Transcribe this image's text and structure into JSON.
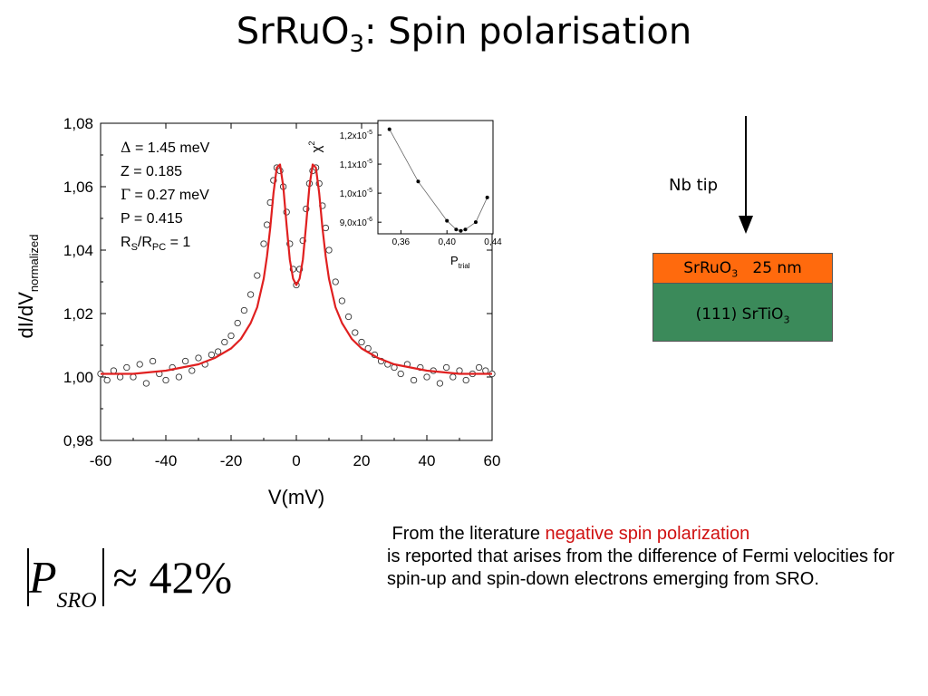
{
  "slide": {
    "title_main": "SrRuO",
    "title_sub": "3",
    "title_rest": ": Spin polarisation"
  },
  "chart_data": [
    {
      "type": "scatter",
      "xlabel": "V(mV)",
      "ylabel_main": "dI/dV",
      "ylabel_sub": "normalized",
      "xlim": [
        -60,
        60
      ],
      "ylim": [
        0.98,
        1.08
      ],
      "xticks": [
        -60,
        -40,
        -20,
        0,
        20,
        40,
        60
      ],
      "xtick_labels": [
        "-60",
        "-40",
        "-20",
        "0",
        "20",
        "40",
        "60"
      ],
      "yticks": [
        0.98,
        1.0,
        1.02,
        1.04,
        1.06,
        1.08
      ],
      "ytick_labels": [
        "0,98",
        "1,00",
        "1,02",
        "1,04",
        "1,06",
        "1,08"
      ],
      "annotations": [
        {
          "sym": "Δ",
          "text": " = 1.45 meV"
        },
        {
          "sym": "",
          "text": "Z = 0.185"
        },
        {
          "sym": "Γ",
          "text": " = 0.27 meV"
        },
        {
          "sym": "",
          "text": "P = 0.415"
        },
        {
          "sym": "",
          "text": "R",
          "sub1": "S",
          "mid": "/R",
          "sub2": "PC",
          "end": " = 1"
        }
      ],
      "fit_color": "#e02020",
      "measured": {
        "x": [
          -60,
          -58,
          -56,
          -54,
          -52,
          -50,
          -48,
          -46,
          -44,
          -42,
          -40,
          -38,
          -36,
          -34,
          -32,
          -30,
          -28,
          -26,
          -24,
          -22,
          -20,
          -18,
          -16,
          -14,
          -12,
          -10,
          -9,
          -8,
          -7,
          -6,
          -5,
          -4,
          -3,
          -2,
          -1,
          0,
          1,
          2,
          3,
          4,
          5,
          6,
          7,
          8,
          9,
          10,
          12,
          14,
          16,
          18,
          20,
          22,
          24,
          26,
          28,
          30,
          32,
          34,
          36,
          38,
          40,
          42,
          44,
          46,
          48,
          50,
          52,
          54,
          56,
          58,
          60
        ],
        "y": [
          1.001,
          0.999,
          1.002,
          1.0,
          1.003,
          1.0,
          1.004,
          0.998,
          1.005,
          1.001,
          0.999,
          1.003,
          1.0,
          1.005,
          1.002,
          1.006,
          1.004,
          1.007,
          1.008,
          1.011,
          1.013,
          1.017,
          1.021,
          1.026,
          1.032,
          1.042,
          1.048,
          1.055,
          1.062,
          1.066,
          1.065,
          1.06,
          1.052,
          1.042,
          1.034,
          1.029,
          1.034,
          1.043,
          1.053,
          1.061,
          1.065,
          1.066,
          1.061,
          1.054,
          1.047,
          1.04,
          1.03,
          1.024,
          1.019,
          1.014,
          1.011,
          1.009,
          1.007,
          1.005,
          1.004,
          1.003,
          1.001,
          1.004,
          0.999,
          1.003,
          1.0,
          1.002,
          0.998,
          1.003,
          1.0,
          1.002,
          0.999,
          1.001,
          1.003,
          1.002,
          1.001
        ]
      },
      "fit": {
        "x": [
          -60,
          -50,
          -40,
          -30,
          -25,
          -20,
          -17,
          -14,
          -12,
          -10,
          -9,
          -8,
          -7,
          -6,
          -5,
          -4,
          -3,
          -2,
          -1,
          0,
          1,
          2,
          3,
          4,
          5,
          6,
          7,
          8,
          9,
          10,
          12,
          14,
          17,
          20,
          25,
          30,
          40,
          50,
          60
        ],
        "y": [
          1.001,
          1.001,
          1.002,
          1.004,
          1.006,
          1.009,
          1.012,
          1.017,
          1.022,
          1.031,
          1.038,
          1.047,
          1.058,
          1.066,
          1.067,
          1.06,
          1.048,
          1.037,
          1.031,
          1.029,
          1.031,
          1.037,
          1.048,
          1.06,
          1.067,
          1.066,
          1.058,
          1.047,
          1.038,
          1.031,
          1.022,
          1.017,
          1.012,
          1.009,
          1.006,
          1.004,
          1.002,
          1.001,
          1.001
        ]
      }
    },
    {
      "type": "line",
      "xlabel_main": "P",
      "xlabel_sub": "trial",
      "ylabel": "χ",
      "ylabel_sup": "2",
      "xlim": [
        0.34,
        0.44
      ],
      "ylim": [
        8.6e-06,
        1.25e-05
      ],
      "xticks": [
        0.36,
        0.4,
        0.44
      ],
      "xtick_labels": [
        "0,36",
        "0,40",
        "0,44"
      ],
      "yticks": [
        9e-06,
        1e-05,
        1.1e-05,
        1.2e-05
      ],
      "ytick_labels": [
        {
          "base": "9,0x10",
          "exp": "-6"
        },
        {
          "base": "1,0x10",
          "exp": "-5"
        },
        {
          "base": "1,1x10",
          "exp": "-5"
        },
        {
          "base": "1,2x10",
          "exp": "-5"
        }
      ],
      "x": [
        0.35,
        0.375,
        0.4,
        0.408,
        0.412,
        0.416,
        0.425,
        0.435
      ],
      "y": [
        1.22e-05,
        1.04e-05,
        9.05e-06,
        8.75e-06,
        8.7e-06,
        8.75e-06,
        9e-06,
        9.85e-06
      ]
    }
  ],
  "schematic": {
    "tip_label": "Nb tip",
    "top_layer": {
      "main": "SrRuO",
      "sub": "3",
      "rest": "   25 nm",
      "color": "#ff6a0d"
    },
    "bottom_layer": {
      "main": "(111) SrTiO",
      "sub": "3",
      "color": "#3b8a5a"
    }
  },
  "note": {
    "plain1": " From the literature ",
    "highlight": "negative spin polarization",
    "plain2": "is reported that arises from the difference of Fermi velocities for spin-up and spin-down electrons emerging from SRO.",
    "highlight_color": "#d01010"
  },
  "formula": {
    "symbol": "P",
    "subscript": "SRO",
    "rest": "≈ 42%"
  }
}
